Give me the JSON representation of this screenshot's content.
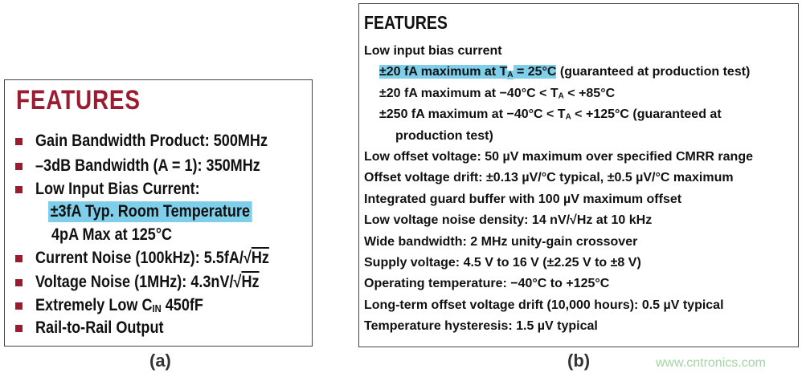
{
  "panel_a": {
    "title": "FEATURES",
    "caption": "(a)",
    "accent_color": "#9b1b30",
    "highlight_color": "#7fcfeb",
    "lines": [
      {
        "bullet": true,
        "indent": 0,
        "parts": [
          {
            "t": "Gain Bandwidth Product: 500MHz"
          }
        ]
      },
      {
        "bullet": true,
        "indent": 0,
        "parts": [
          {
            "t": "–3dB Bandwidth (A = 1): 350MHz"
          }
        ]
      },
      {
        "bullet": true,
        "indent": 0,
        "parts": [
          {
            "t": "Low Input Bias Current:"
          }
        ]
      },
      {
        "bullet": false,
        "indent": 1,
        "highlight": true,
        "parts": [
          {
            "t": "±3fA Typ. Room Temperature"
          }
        ]
      },
      {
        "bullet": false,
        "indent": 1,
        "parts": [
          {
            "t": "4pA Max at 125°C"
          }
        ]
      },
      {
        "bullet": true,
        "indent": 0,
        "parts": [
          {
            "t": "Current Noise (100kHz): 5.5fA/√"
          },
          {
            "t": "Hz",
            "sqrt": true
          }
        ]
      },
      {
        "bullet": true,
        "indent": 0,
        "parts": [
          {
            "t": "Voltage Noise (1MHz): 4.3nV/√"
          },
          {
            "t": "Hz",
            "sqrt": true
          }
        ]
      },
      {
        "bullet": true,
        "indent": 0,
        "parts": [
          {
            "t": "Extremely Low C"
          },
          {
            "t": "IN",
            "sub": true
          },
          {
            "t": " 450fF"
          }
        ]
      },
      {
        "bullet": true,
        "indent": 0,
        "parts": [
          {
            "t": "Rail-to-Rail Output"
          }
        ]
      }
    ]
  },
  "panel_b": {
    "title": "FEATURES",
    "caption": "(b)",
    "lines": [
      {
        "indent": 0,
        "parts": [
          {
            "t": "Low input bias current"
          }
        ]
      },
      {
        "indent": 1,
        "parts": [
          {
            "t": "±20 fA maximum at T",
            "hl": true
          },
          {
            "t": "A",
            "sub": true,
            "hl": true
          },
          {
            "t": " = 25°C",
            "hl": true
          },
          {
            "t": " (guaranteed at production test)"
          }
        ]
      },
      {
        "indent": 1,
        "parts": [
          {
            "t": "±20 fA maximum at −40°C < T"
          },
          {
            "t": "A",
            "sub": true
          },
          {
            "t": " < +85°C"
          }
        ]
      },
      {
        "indent": 1,
        "parts": [
          {
            "t": "±250 fA maximum at −40°C < T"
          },
          {
            "t": "A",
            "sub": true
          },
          {
            "t": " < +125°C (guaranteed at"
          }
        ]
      },
      {
        "indent": 2,
        "parts": [
          {
            "t": "production test)"
          }
        ]
      },
      {
        "indent": 0,
        "parts": [
          {
            "t": "Low offset voltage: 50 µV maximum over specified CMRR range"
          }
        ]
      },
      {
        "indent": 0,
        "parts": [
          {
            "t": "Offset voltage drift: ±0.13 µV/°C typical, ±0.5 µV/°C maximum"
          }
        ]
      },
      {
        "indent": 0,
        "parts": [
          {
            "t": "Integrated guard buffer with 100 µV maximum offset"
          }
        ]
      },
      {
        "indent": 0,
        "parts": [
          {
            "t": "Low voltage noise density: 14 nV/√Hz at 10 kHz"
          }
        ]
      },
      {
        "indent": 0,
        "parts": [
          {
            "t": "Wide bandwidth: 2 MHz unity-gain crossover"
          }
        ]
      },
      {
        "indent": 0,
        "parts": [
          {
            "t": "Supply voltage: 4.5 V to 16 V (±2.25 V to ±8 V)"
          }
        ]
      },
      {
        "indent": 0,
        "parts": [
          {
            "t": "Operating temperature: −40°C to +125°C"
          }
        ]
      },
      {
        "indent": 0,
        "parts": [
          {
            "t": "Long-term offset voltage drift (10,000 hours): 0.5 µV typical"
          }
        ]
      },
      {
        "indent": 0,
        "parts": [
          {
            "t": "Temperature hysteresis: 1.5 µV typical"
          }
        ]
      }
    ]
  },
  "watermark": "www.cntronics.com"
}
